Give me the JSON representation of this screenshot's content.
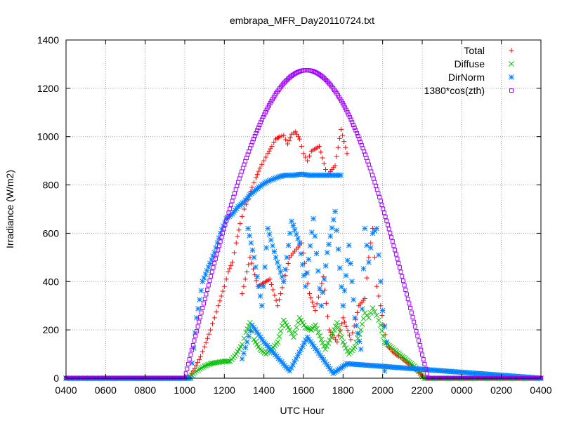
{
  "chart_data": {
    "type": "scatter",
    "title": "embrapa_MFR_Day20110724.txt",
    "xlabel": "UTC Hour",
    "ylabel": "Irradiance (W/m2)",
    "x_tick_labels": [
      "0400",
      "0600",
      "0800",
      "1000",
      "1200",
      "1400",
      "1600",
      "1800",
      "2000",
      "2200",
      "0000",
      "0200",
      "0400"
    ],
    "x_range_hours": [
      4,
      28
    ],
    "ylim": [
      0,
      1400
    ],
    "y_ticks": [
      0,
      200,
      400,
      600,
      800,
      1000,
      1200,
      1400
    ],
    "grid": true,
    "legend_position": "top-right",
    "series": [
      {
        "name": "Total",
        "marker": "+",
        "color": "#ff0000",
        "points": [
          [
            4,
            0
          ],
          [
            10.2,
            0
          ],
          [
            10.5,
            40
          ],
          [
            10.8,
            90
          ],
          [
            11.0,
            130
          ],
          [
            11.3,
            200
          ],
          [
            11.5,
            250
          ],
          [
            11.7,
            300
          ],
          [
            12.0,
            380
          ],
          [
            12.2,
            440
          ],
          [
            12.4,
            480
          ],
          [
            12.6,
            560
          ],
          [
            12.8,
            640
          ],
          [
            13.0,
            700
          ],
          [
            13.2,
            740
          ],
          [
            13.4,
            790
          ],
          [
            13.6,
            830
          ],
          [
            13.8,
            870
          ],
          [
            14.0,
            900
          ],
          [
            14.2,
            930
          ],
          [
            14.4,
            960
          ],
          [
            14.6,
            990
          ],
          [
            14.8,
            1000
          ],
          [
            15.0,
            1005
          ],
          [
            15.2,
            970
          ],
          [
            15.4,
            1010
          ],
          [
            15.6,
            1020
          ],
          [
            15.8,
            990
          ],
          [
            16.0,
            930
          ],
          [
            16.2,
            900
          ],
          [
            16.4,
            940
          ],
          [
            16.8,
            960
          ],
          [
            17.2,
            840
          ],
          [
            17.6,
            880
          ],
          [
            17.9,
            1030
          ],
          [
            18.2,
            930
          ],
          [
            12.9,
            350
          ],
          [
            13.3,
            500
          ],
          [
            13.7,
            380
          ],
          [
            14.3,
            410
          ],
          [
            14.7,
            300
          ],
          [
            15.3,
            500
          ],
          [
            15.9,
            560
          ],
          [
            16.3,
            350
          ],
          [
            16.6,
            280
          ],
          [
            17.0,
            420
          ],
          [
            17.3,
            200
          ],
          [
            17.7,
            150
          ],
          [
            18.0,
            250
          ],
          [
            18.4,
            160
          ],
          [
            18.8,
            300
          ],
          [
            19.1,
            330
          ],
          [
            19.3,
            500
          ],
          [
            19.5,
            620
          ],
          [
            19.7,
            380
          ],
          [
            19.9,
            300
          ],
          [
            20.2,
            140
          ],
          [
            20.5,
            110
          ],
          [
            20.8,
            90
          ],
          [
            21.0,
            80
          ],
          [
            21.3,
            60
          ],
          [
            21.6,
            40
          ],
          [
            21.9,
            20
          ],
          [
            22.1,
            0
          ],
          [
            28,
            0
          ]
        ]
      },
      {
        "name": "Diffuse",
        "marker": "x",
        "color": "#00c000",
        "points": [
          [
            4,
            0
          ],
          [
            10.2,
            0
          ],
          [
            10.6,
            30
          ],
          [
            11.0,
            50
          ],
          [
            11.3,
            60
          ],
          [
            11.6,
            65
          ],
          [
            12.0,
            70
          ],
          [
            12.3,
            70
          ],
          [
            12.6,
            100
          ],
          [
            12.9,
            140
          ],
          [
            13.1,
            190
          ],
          [
            13.3,
            230
          ],
          [
            13.5,
            160
          ],
          [
            13.8,
            120
          ],
          [
            14.1,
            100
          ],
          [
            14.4,
            120
          ],
          [
            14.7,
            150
          ],
          [
            15.0,
            240
          ],
          [
            15.3,
            200
          ],
          [
            15.5,
            170
          ],
          [
            15.8,
            250
          ],
          [
            16.1,
            210
          ],
          [
            16.4,
            200
          ],
          [
            16.6,
            220
          ],
          [
            16.9,
            160
          ],
          [
            17.1,
            120
          ],
          [
            17.4,
            170
          ],
          [
            17.7,
            230
          ],
          [
            18.0,
            150
          ],
          [
            18.3,
            100
          ],
          [
            18.6,
            130
          ],
          [
            18.9,
            200
          ],
          [
            19.1,
            270
          ],
          [
            19.3,
            250
          ],
          [
            19.5,
            290
          ],
          [
            19.7,
            260
          ],
          [
            19.9,
            220
          ],
          [
            20.1,
            150
          ],
          [
            20.4,
            130
          ],
          [
            20.7,
            110
          ],
          [
            21.0,
            90
          ],
          [
            21.3,
            70
          ],
          [
            21.6,
            50
          ],
          [
            21.9,
            20
          ],
          [
            22.1,
            0
          ],
          [
            28,
            0
          ]
        ]
      },
      {
        "name": "DirNorm",
        "marker": "*",
        "color": "#0080ff",
        "points": [
          [
            4,
            0
          ],
          [
            10.3,
            0
          ],
          [
            10.6,
            250
          ],
          [
            10.9,
            400
          ],
          [
            11.2,
            460
          ],
          [
            11.5,
            520
          ],
          [
            11.8,
            600
          ],
          [
            12.1,
            660
          ],
          [
            12.4,
            680
          ],
          [
            12.7,
            710
          ],
          [
            13.0,
            730
          ],
          [
            13.3,
            760
          ],
          [
            13.6,
            780
          ],
          [
            13.9,
            800
          ],
          [
            14.2,
            815
          ],
          [
            14.5,
            825
          ],
          [
            14.8,
            835
          ],
          [
            15.1,
            840
          ],
          [
            15.5,
            840
          ],
          [
            15.9,
            845
          ],
          [
            16.3,
            840
          ],
          [
            16.7,
            840
          ],
          [
            17.1,
            840
          ],
          [
            17.5,
            840
          ],
          [
            17.9,
            840
          ],
          [
            13.2,
            620
          ],
          [
            13.5,
            500
          ],
          [
            13.9,
            300
          ],
          [
            14.2,
            620
          ],
          [
            14.6,
            500
          ],
          [
            15.0,
            400
          ],
          [
            15.4,
            650
          ],
          [
            15.8,
            560
          ],
          [
            16.1,
            380
          ],
          [
            16.5,
            660
          ],
          [
            16.9,
            300
          ],
          [
            17.2,
            520
          ],
          [
            17.6,
            690
          ],
          [
            18.0,
            300
          ],
          [
            18.3,
            550
          ],
          [
            18.6,
            250
          ],
          [
            18.9,
            120
          ],
          [
            19.1,
            620
          ],
          [
            19.3,
            480
          ],
          [
            19.5,
            600
          ],
          [
            19.7,
            620
          ],
          [
            19.9,
            400
          ],
          [
            20.0,
            280
          ],
          [
            20.2,
            150
          ],
          [
            20.1,
            30
          ],
          [
            12.9,
            80
          ],
          [
            13.4,
            220
          ],
          [
            14.0,
            150
          ],
          [
            15.3,
            30
          ],
          [
            16.2,
            170
          ],
          [
            17.5,
            20
          ],
          [
            18.2,
            60
          ],
          [
            28,
            0
          ]
        ]
      },
      {
        "name": "1380*cos(zth)",
        "marker": "square",
        "color": "#a000ff",
        "x": [
          10.05,
          22.3
        ],
        "peak": 1275,
        "peak_hour": 16.15
      }
    ]
  }
}
